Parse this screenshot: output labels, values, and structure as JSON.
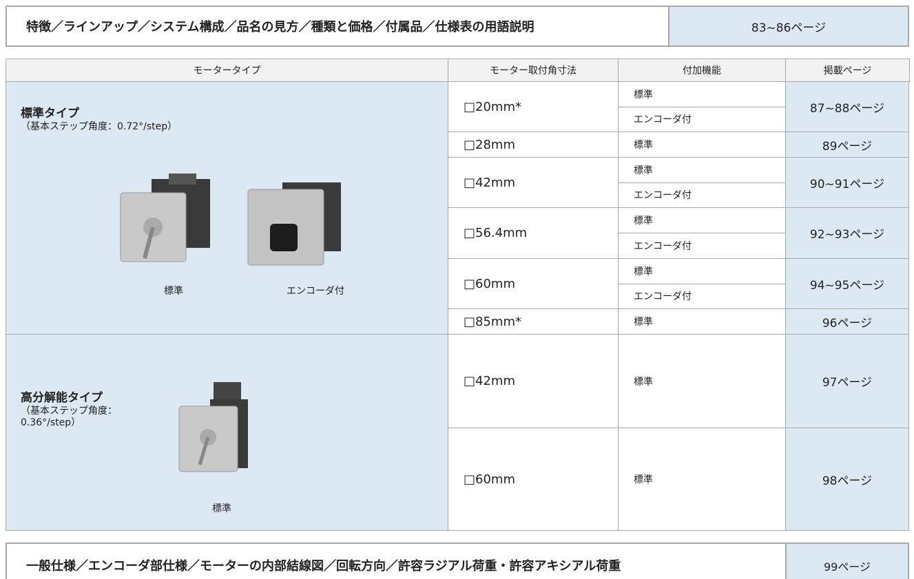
{
  "header_box": {
    "title": "特徴／ラインアップ／システム構成／品名の見方／種類と価格／付属品／仕様表の用語説明",
    "pages": "83~86ページ"
  },
  "table": {
    "columns": [
      "モータータイプ",
      "モーター取付角寸法",
      "付加機能",
      "掲載ページ"
    ],
    "groups": [
      {
        "title": "標準タイプ",
        "note_lines": [
          "（基本ステップ角度：0.72°/step）"
        ],
        "image_labels": [
          "標準",
          "エンコーダ付"
        ],
        "rows": [
          {
            "size": "□20mm*",
            "functions": [
              "標準",
              "エンコーダ付"
            ],
            "pages": "87~88ページ"
          },
          {
            "size": "□28mm",
            "functions": [
              "標準"
            ],
            "pages": "89ページ"
          },
          {
            "size": "□42mm",
            "functions": [
              "標準",
              "エンコーダ付"
            ],
            "pages": "90~91ページ"
          },
          {
            "size": "□56.4mm",
            "functions": [
              "標準",
              "エンコーダ付"
            ],
            "pages": "92~93ページ"
          },
          {
            "size": "□60mm",
            "functions": [
              "標準",
              "エンコーダ付"
            ],
            "pages": "94~95ページ"
          },
          {
            "size": "□85mm*",
            "functions": [
              "標準"
            ],
            "pages": "96ページ"
          }
        ]
      },
      {
        "title": "高分解能タイプ",
        "note_lines": [
          "（基本ステップ角度：",
          "0.36°/step）"
        ],
        "image_labels": [
          "標準"
        ],
        "rows": [
          {
            "size": "□42mm",
            "functions": [
              "標準"
            ],
            "pages": "97ページ"
          },
          {
            "size": "□60mm",
            "functions": [
              "標準"
            ],
            "pages": "98ページ"
          }
        ]
      }
    ]
  },
  "footer_box": {
    "title": "一般仕様／エンコーダ部仕様／モーターの内部結線図／回転方向／許容ラジアル荷重・許容アキシアル荷重",
    "pages": "99ページ"
  }
}
